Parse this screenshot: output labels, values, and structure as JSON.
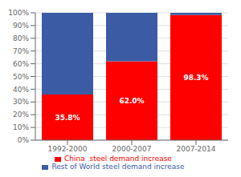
{
  "chart_data": {
    "type": "bar",
    "stacked": true,
    "categories": [
      "1992-2000",
      "2000-2007",
      "2007-2014"
    ],
    "series": [
      {
        "name": "China  steel demand increase",
        "color": "#FF0000",
        "values": [
          35.8,
          62.0,
          98.3
        ],
        "data_labels": true,
        "value_labels": [
          "35.8%",
          "62.0%",
          "98.3%"
        ]
      },
      {
        "name": "Rest of World steel demand increase",
        "color": "#3B5BA5",
        "values": [
          64.2,
          38.0,
          1.7
        ]
      }
    ],
    "ylim": [
      0,
      100
    ],
    "yticks": [
      {
        "value": 0,
        "label": "0%"
      },
      {
        "value": 10,
        "label": "10%"
      },
      {
        "value": 20,
        "label": "20%"
      },
      {
        "value": 30,
        "label": "30%"
      },
      {
        "value": 40,
        "label": "40%"
      },
      {
        "value": 50,
        "label": "50%"
      },
      {
        "value": 60,
        "label": "60%"
      },
      {
        "value": 70,
        "label": "70%"
      },
      {
        "value": 80,
        "label": "80%"
      },
      {
        "value": 90,
        "label": "90%"
      },
      {
        "value": 100,
        "label": "100%"
      }
    ],
    "grid": true,
    "legend": "bottom"
  }
}
